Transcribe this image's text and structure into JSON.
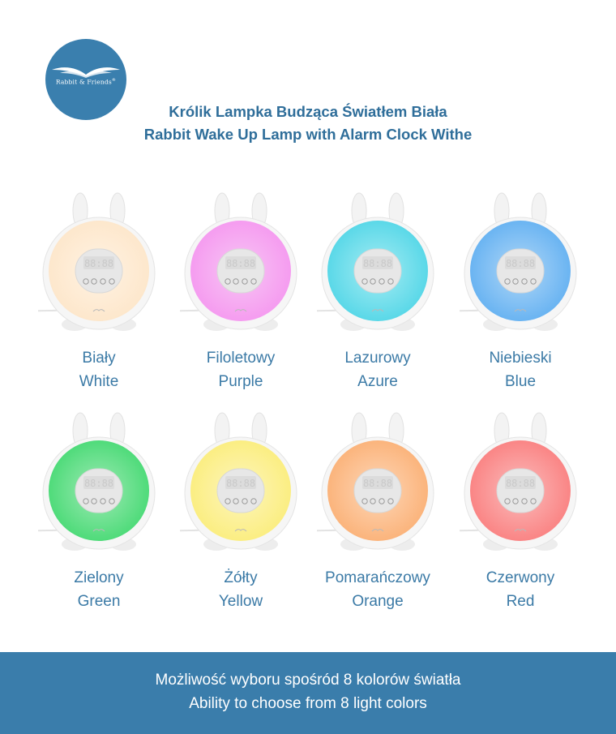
{
  "logo": {
    "name": "Rabbit & Friends",
    "mark": "®",
    "icon": "wings-icon"
  },
  "title": {
    "pl": "Królik Lampka Budząca Światłem Biała",
    "en": "Rabbit Wake Up Lamp with Alarm Clock Withe"
  },
  "colors": [
    {
      "pl": "Biały",
      "en": "White",
      "glow": "#fde7cc",
      "ring": "#fff3e3"
    },
    {
      "pl": "Filoletowy",
      "en": "Purple",
      "glow": "#f59cf0",
      "ring": "#f8c6f4"
    },
    {
      "pl": "Lazurowy",
      "en": "Azure",
      "glow": "#5ad8e8",
      "ring": "#a6ecf3"
    },
    {
      "pl": "Niebieski",
      "en": "Blue",
      "glow": "#6ab4f2",
      "ring": "#b0d7f7"
    },
    {
      "pl": "Zielony",
      "en": "Green",
      "glow": "#4fdb7a",
      "ring": "#9eeab4"
    },
    {
      "pl": "Żółty",
      "en": "Yellow",
      "glow": "#fbee82",
      "ring": "#fdf5bd"
    },
    {
      "pl": "Pomarańczowy",
      "en": "Orange",
      "glow": "#fbb47c",
      "ring": "#fdd7b8"
    },
    {
      "pl": "Czerwony",
      "en": "Red",
      "glow": "#fa8585",
      "ring": "#fbbcbc"
    }
  ],
  "footer": {
    "pl": "Możliwość wyboru spośród 8 kolorów światła",
    "en": "Ability to choose from 8 light colors"
  },
  "accent": "#3a7dab"
}
